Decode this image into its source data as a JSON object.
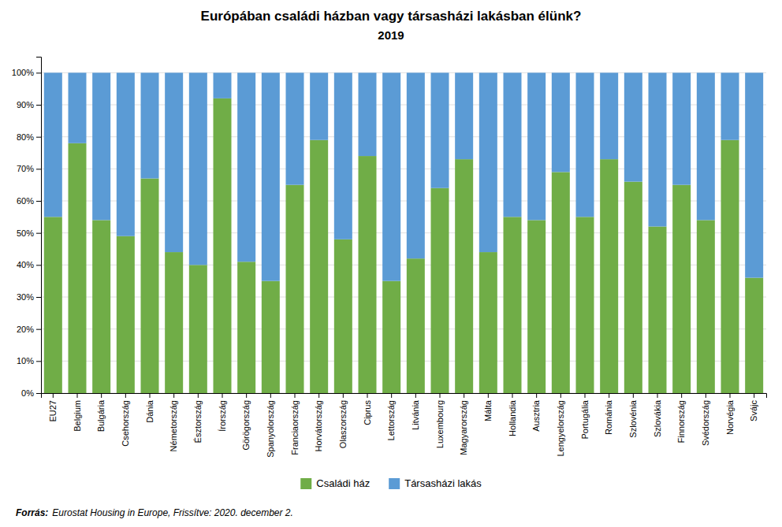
{
  "chart_data": {
    "type": "bar",
    "stacked": true,
    "title": "Európában családi házban vagy társasházi lakásban élünk?",
    "subtitle": "2019",
    "categories": [
      "EU27",
      "Belgium",
      "Bulgária",
      "Csehország",
      "Dánia",
      "Németország",
      "Észtország",
      "Írország",
      "Görögország",
      "Spanyolország",
      "Franciaország",
      "Horvátország",
      "Olaszország",
      "Ciprus",
      "Lettország",
      "Litvánia",
      "Luxembourg",
      "Magyarország",
      "Málta",
      "Hollandia",
      "Ausztria",
      "Lengyelország",
      "Portugália",
      "Románia",
      "Szlovénia",
      "Szlovákia",
      "Finnország",
      "Svédország",
      "Norvégia",
      "Svájc"
    ],
    "series": [
      {
        "name": "Családi ház",
        "color": "#70AD47",
        "values": [
          55,
          78,
          54,
          49,
          67,
          44,
          40,
          92,
          41,
          35,
          65,
          79,
          48,
          74,
          35,
          42,
          64,
          73,
          44,
          55,
          54,
          69,
          55,
          73,
          66,
          52,
          65,
          54,
          79,
          36
        ]
      },
      {
        "name": "Társasházi lakás",
        "color": "#5B9BD5",
        "values": [
          45,
          22,
          46,
          51,
          33,
          56,
          60,
          8,
          59,
          65,
          35,
          21,
          52,
          26,
          65,
          58,
          36,
          27,
          56,
          45,
          46,
          31,
          45,
          27,
          34,
          48,
          35,
          46,
          21,
          64
        ]
      }
    ],
    "ylim": [
      0,
      105
    ],
    "yticks": [
      {
        "value": 0,
        "label": "0%"
      },
      {
        "value": 10,
        "label": "10%"
      },
      {
        "value": 20,
        "label": "20%"
      },
      {
        "value": 30,
        "label": "30%"
      },
      {
        "value": 40,
        "label": "40%"
      },
      {
        "value": 50,
        "label": "50%"
      },
      {
        "value": 60,
        "label": "60%"
      },
      {
        "value": 70,
        "label": "70%"
      },
      {
        "value": 80,
        "label": "80%"
      },
      {
        "value": 90,
        "label": "90%"
      },
      {
        "value": 100,
        "label": "100%"
      }
    ],
    "grid": true,
    "legend": "bottom",
    "annotations": [
      "Forrás:",
      "Eurostat Housing in Europe, Frissítve: 2020. december 2."
    ]
  }
}
